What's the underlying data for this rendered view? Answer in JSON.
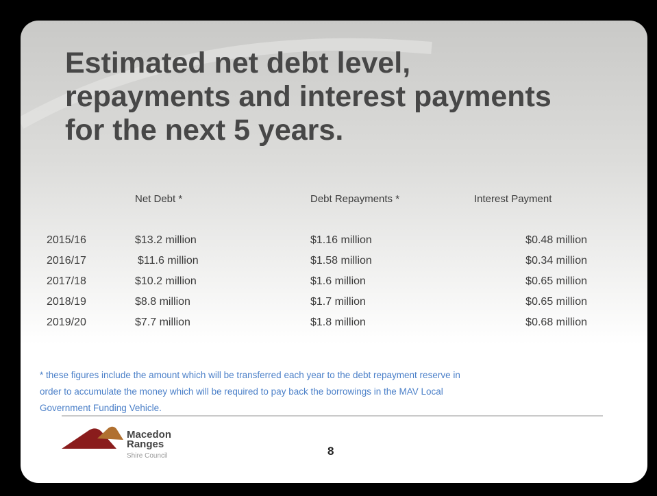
{
  "slide": {
    "title_lines": [
      "Estimated net debt level,",
      "repayments and interest payments",
      "for the next 5 years."
    ],
    "table": {
      "headers": [
        "Net Debt *",
        "Debt Repayments *",
        "Interest Payment"
      ],
      "rows": [
        [
          "2015/16",
          "$13.2 million",
          "$1.16 million",
          "$0.48 million"
        ],
        [
          "2016/17",
          "$11.6 million",
          "$1.58 million",
          "$0.34 million"
        ],
        [
          "2017/18",
          "$10.2 million",
          "$1.6 million",
          "$0.65 million"
        ],
        [
          "2018/19",
          "$8.8 million",
          "$1.7 million",
          "$0.65 million"
        ],
        [
          "2019/20",
          "$7.7 million",
          "$1.8 million",
          "$0.68 million"
        ]
      ]
    },
    "footnote_lines": [
      "* these figures include the amount which will be transferred each year to the debt repayment reserve in",
      "order to accumulate the money which will be required to pay back the borrowings in the MAV Local",
      "Government Funding Vehicle."
    ],
    "logo": {
      "line1": "Macedon",
      "line2": "Ranges",
      "line3": "Shire Council"
    },
    "page_number": "8"
  }
}
